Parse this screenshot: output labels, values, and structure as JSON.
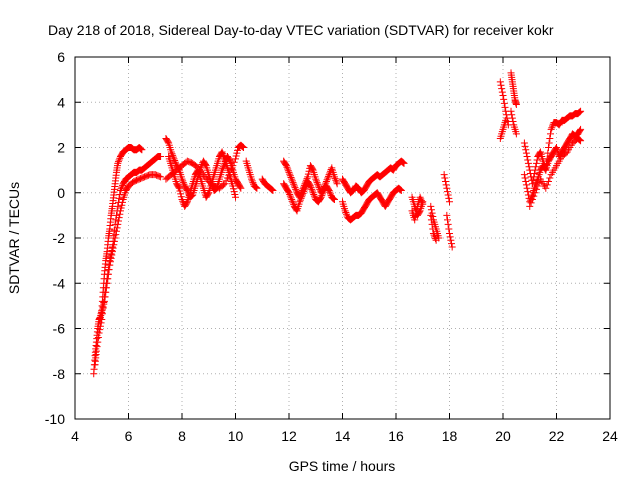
{
  "chart_data": {
    "type": "scatter",
    "title": "Day 218 of 2018, Sidereal Day-to-day VTEC variation (SDTVAR) for receiver kokr",
    "xlabel": "GPS time / hours",
    "ylabel": "SDTVAR / TECUs",
    "xlim": [
      4,
      24
    ],
    "ylim": [
      -10,
      6
    ],
    "x_ticks": [
      4,
      6,
      8,
      10,
      12,
      14,
      16,
      18,
      20,
      22,
      24
    ],
    "y_ticks": [
      -10,
      -8,
      -6,
      -4,
      -2,
      0,
      2,
      4,
      6
    ],
    "grid": true,
    "marker": "+",
    "color": "#ff0000",
    "series": [
      {
        "name": "SDTVAR",
        "segments": [
          {
            "x": [
              4.7,
              4.75,
              4.8,
              4.85,
              4.9,
              4.95,
              5.0,
              5.05,
              5.1,
              5.15,
              5.2,
              5.25,
              5.3,
              5.35,
              5.4,
              5.45,
              5.5,
              5.55,
              5.6,
              5.7,
              5.8,
              5.9,
              6.0,
              6.1,
              6.2,
              6.3,
              6.4,
              6.5
            ],
            "y": [
              -8.0,
              -7.2,
              -6.6,
              -6.0,
              -5.6,
              -5.5,
              -5.2,
              -4.4,
              -3.6,
              -3.0,
              -2.6,
              -2.0,
              -1.6,
              -1.0,
              -0.6,
              -0.1,
              0.4,
              0.9,
              1.3,
              1.6,
              1.8,
              1.9,
              2.0,
              2.0,
              1.9,
              1.9,
              2.0,
              1.9
            ]
          },
          {
            "x": [
              4.75,
              4.8,
              4.9,
              5.0,
              5.1,
              5.2,
              5.3,
              5.4,
              5.5,
              5.6,
              5.7,
              5.8,
              5.9,
              6.0,
              6.1,
              6.2,
              6.3,
              6.4,
              6.5,
              6.6,
              6.7,
              6.8,
              6.9,
              7.0,
              7.1,
              7.2
            ],
            "y": [
              -7.6,
              -7.0,
              -6.2,
              -5.6,
              -4.6,
              -3.8,
              -3.0,
              -2.4,
              -1.4,
              -0.6,
              0.1,
              0.4,
              0.6,
              0.7,
              0.8,
              0.9,
              0.9,
              1.0,
              1.0,
              1.1,
              1.2,
              1.3,
              1.4,
              1.5,
              1.6,
              1.6
            ]
          },
          {
            "x": [
              5.0,
              5.1,
              5.2,
              5.3,
              5.4,
              5.5,
              5.6,
              5.7,
              5.8,
              5.9,
              6.0,
              6.2,
              6.4,
              6.6,
              6.8,
              7.0,
              7.2
            ],
            "y": [
              -5.3,
              -4.8,
              -4.0,
              -3.2,
              -2.6,
              -2.0,
              -1.4,
              -0.8,
              -0.3,
              0.1,
              0.3,
              0.5,
              0.6,
              0.7,
              0.8,
              0.8,
              0.7
            ]
          },
          {
            "x": [
              7.4,
              7.5,
              7.6,
              7.7,
              7.8,
              7.9,
              8.0,
              8.1,
              8.2,
              8.3,
              8.4,
              8.5,
              8.6,
              8.7,
              8.8,
              8.9,
              9.0,
              9.1,
              9.2,
              9.3,
              9.4,
              9.5,
              9.6,
              9.7,
              9.8,
              9.9,
              10.0,
              10.1,
              10.2
            ],
            "y": [
              2.4,
              2.2,
              1.8,
              1.5,
              1.2,
              1.0,
              0.6,
              0.3,
              0.1,
              -0.2,
              -0.1,
              0.3,
              0.7,
              1.1,
              1.4,
              1.2,
              0.8,
              0.4,
              0.1,
              0.2,
              0.6,
              1.0,
              1.3,
              1.6,
              1.4,
              1.0,
              0.6,
              0.4,
              0.2
            ]
          },
          {
            "x": [
              7.5,
              7.6,
              7.7,
              7.8,
              7.9,
              8.0,
              8.1,
              8.2,
              8.3,
              8.4,
              8.5,
              8.6,
              8.7,
              8.8,
              8.9,
              9.0,
              9.1,
              9.2,
              9.3,
              9.4,
              9.5,
              9.6,
              9.7,
              9.8,
              9.9,
              10.0
            ],
            "y": [
              1.6,
              1.2,
              0.8,
              0.4,
              0.2,
              -0.3,
              -0.6,
              -0.4,
              0.0,
              0.4,
              0.8,
              1.0,
              0.6,
              0.2,
              -0.2,
              0.0,
              0.4,
              0.8,
              1.2,
              1.6,
              1.8,
              1.5,
              1.1,
              0.7,
              0.3,
              -0.2
            ]
          },
          {
            "x": [
              7.4,
              7.6,
              7.8,
              8.0,
              8.2,
              8.4,
              8.6,
              8.8,
              9.0,
              9.2,
              9.4,
              9.6,
              9.8,
              10.0,
              10.1,
              10.2,
              10.3
            ],
            "y": [
              0.6,
              0.8,
              1.0,
              1.2,
              1.4,
              1.3,
              1.1,
              0.8,
              0.5,
              0.3,
              0.2,
              0.4,
              0.9,
              1.5,
              2.0,
              2.1,
              2.0
            ]
          },
          {
            "x": [
              10.4,
              10.5,
              10.6,
              10.7,
              10.8
            ],
            "y": [
              1.4,
              1.0,
              0.6,
              0.3,
              0.2
            ]
          },
          {
            "x": [
              11.0,
              11.1,
              11.2,
              11.3,
              11.4
            ],
            "y": [
              0.6,
              0.4,
              0.3,
              0.2,
              0.1
            ]
          },
          {
            "x": [
              11.8,
              11.9,
              12.0,
              12.1,
              12.2,
              12.3,
              12.4,
              12.5,
              12.6,
              12.7,
              12.8,
              12.9,
              13.0,
              13.1,
              13.2,
              13.3,
              13.4,
              13.5,
              13.6,
              13.7,
              13.8
            ],
            "y": [
              1.4,
              1.2,
              0.9,
              0.6,
              0.3,
              0.0,
              -0.2,
              0.1,
              0.4,
              0.7,
              1.2,
              1.0,
              0.6,
              0.3,
              0.0,
              0.2,
              0.5,
              0.8,
              1.1,
              0.7,
              0.4
            ]
          },
          {
            "x": [
              11.8,
              11.9,
              12.0,
              12.1,
              12.2,
              12.3,
              12.4,
              12.5,
              12.6,
              12.7,
              12.8,
              12.9,
              13.0,
              13.1,
              13.2,
              13.3,
              13.4,
              13.5,
              13.6,
              13.7
            ],
            "y": [
              0.4,
              0.2,
              0.0,
              -0.3,
              -0.6,
              -0.8,
              -0.4,
              -0.1,
              0.2,
              0.5,
              0.3,
              0.0,
              -0.3,
              -0.4,
              -0.2,
              0.1,
              0.3,
              0.1,
              -0.2,
              -0.3
            ]
          },
          {
            "x": [
              14.0,
              14.1,
              14.2,
              14.3,
              14.4,
              14.5,
              14.6,
              14.7,
              14.8,
              14.9,
              15.0,
              15.1,
              15.2,
              15.3,
              15.4,
              15.5,
              15.6,
              15.7,
              15.8,
              15.9,
              16.0,
              16.1,
              16.2,
              16.3
            ],
            "y": [
              0.6,
              0.4,
              0.2,
              0.0,
              0.1,
              0.3,
              0.2,
              0.0,
              0.1,
              0.3,
              0.5,
              0.6,
              0.7,
              0.8,
              0.7,
              0.8,
              0.9,
              1.0,
              1.1,
              1.0,
              1.2,
              1.3,
              1.4,
              1.3
            ]
          },
          {
            "x": [
              14.0,
              14.1,
              14.2,
              14.3,
              14.4,
              14.5,
              14.6,
              14.7,
              14.8,
              14.9,
              15.0,
              15.1,
              15.2,
              15.3,
              15.4,
              15.5,
              15.6,
              15.7,
              15.8,
              15.9,
              16.0,
              16.1,
              16.2
            ],
            "y": [
              -0.4,
              -0.8,
              -1.1,
              -1.2,
              -1.1,
              -1.0,
              -1.0,
              -0.9,
              -0.7,
              -0.5,
              -0.3,
              -0.2,
              -0.1,
              0.0,
              -0.2,
              -0.4,
              -0.6,
              -0.4,
              -0.2,
              0.0,
              0.1,
              0.2,
              0.1
            ]
          },
          {
            "x": [
              16.6,
              16.7,
              16.8,
              16.9,
              17.0
            ],
            "y": [
              -0.2,
              -0.6,
              -1.0,
              -0.8,
              -0.4
            ]
          },
          {
            "x": [
              16.6,
              16.7,
              16.8,
              16.9,
              17.0
            ],
            "y": [
              -0.8,
              -1.2,
              -0.6,
              -0.2,
              -0.5
            ]
          },
          {
            "x": [
              17.3,
              17.4,
              17.5,
              17.6
            ],
            "y": [
              -0.6,
              -1.2,
              -1.6,
              -2.0
            ]
          },
          {
            "x": [
              17.3,
              17.4,
              17.5
            ],
            "y": [
              -1.0,
              -1.8,
              -2.1
            ]
          },
          {
            "x": [
              17.8,
              17.9,
              18.0
            ],
            "y": [
              0.8,
              0.2,
              -0.4
            ]
          },
          {
            "x": [
              17.9,
              18.0,
              18.1
            ],
            "y": [
              -1.0,
              -1.8,
              -2.4
            ]
          },
          {
            "x": [
              19.9,
              20.0,
              20.1,
              20.2
            ],
            "y": [
              4.9,
              4.3,
              3.6,
              3.0
            ]
          },
          {
            "x": [
              19.9,
              20.0,
              20.1
            ],
            "y": [
              2.4,
              2.8,
              3.2
            ]
          },
          {
            "x": [
              20.3,
              20.35,
              20.4,
              20.45,
              20.5
            ],
            "y": [
              5.3,
              4.9,
              4.5,
              4.1,
              3.9
            ]
          },
          {
            "x": [
              20.3,
              20.4,
              20.5
            ],
            "y": [
              3.6,
              3.0,
              2.6
            ]
          },
          {
            "x": [
              20.8,
              20.9,
              21.0,
              21.1,
              21.2,
              21.3,
              21.4,
              21.5,
              21.6,
              21.7,
              21.8,
              21.9,
              22.0,
              22.1,
              22.2,
              22.3,
              22.4,
              22.5,
              22.6,
              22.7,
              22.8,
              22.9
            ],
            "y": [
              2.2,
              1.6,
              1.0,
              0.4,
              1.0,
              1.6,
              1.8,
              1.4,
              1.0,
              2.0,
              2.8,
              3.1,
              3.1,
              3.0,
              3.2,
              3.2,
              3.3,
              3.4,
              3.4,
              3.5,
              3.5,
              3.6
            ]
          },
          {
            "x": [
              20.8,
              20.9,
              21.0,
              21.1,
              21.2,
              21.3,
              21.4,
              21.5,
              21.6,
              21.7,
              21.8,
              21.9,
              22.0,
              22.1,
              22.2,
              22.3,
              22.4,
              22.5,
              22.6,
              22.7,
              22.8,
              22.9
            ],
            "y": [
              0.8,
              0.2,
              -0.4,
              -0.1,
              0.3,
              0.6,
              1.0,
              1.2,
              1.0,
              1.4,
              1.6,
              1.8,
              2.0,
              1.6,
              1.8,
              2.0,
              2.2,
              2.4,
              2.6,
              2.5,
              2.6,
              2.8
            ]
          },
          {
            "x": [
              21.0,
              21.2,
              21.4,
              21.6,
              21.8,
              22.0,
              22.2,
              22.4,
              22.6,
              22.8,
              22.9
            ],
            "y": [
              -0.6,
              0.0,
              0.6,
              0.2,
              0.8,
              1.2,
              1.6,
              1.8,
              2.2,
              2.4,
              2.3
            ]
          }
        ]
      }
    ]
  }
}
